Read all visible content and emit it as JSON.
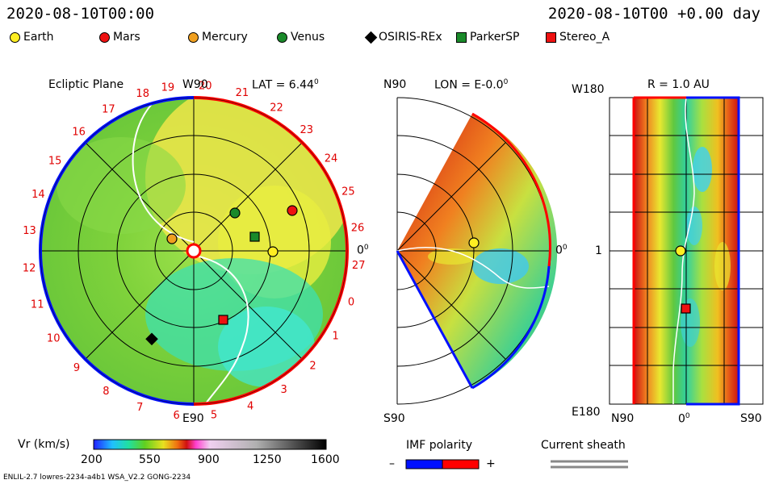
{
  "header": {
    "datetime_left": "2020-08-10T00:00",
    "datetime_right": "2020-08-10T00 +0.00 day"
  },
  "legend": [
    {
      "label": "Earth",
      "color": "#ffee22",
      "shape": "circle"
    },
    {
      "label": "Mars",
      "color": "#ee1111",
      "shape": "circle"
    },
    {
      "label": "Mercury",
      "color": "#f0a020",
      "shape": "circle"
    },
    {
      "label": "Venus",
      "color": "#1a8a2a",
      "shape": "circle"
    },
    {
      "label": "OSIRIS-REx",
      "color": "#000000",
      "shape": "diamond"
    },
    {
      "label": "ParkerSP",
      "color": "#1a8a2a",
      "shape": "square"
    },
    {
      "label": "Stereo_A",
      "color": "#ee1111",
      "shape": "square"
    }
  ],
  "ecliptic": {
    "title": "Ecliptic Plane",
    "top_label": "W90",
    "bottom_label": "E90",
    "right_label": "0",
    "lat_text": "LAT = 6.44",
    "carrington": [
      "19",
      "20",
      "21",
      "22",
      "23",
      "24",
      "25",
      "26",
      "27",
      "0",
      "1",
      "2",
      "3",
      "4",
      "5",
      "6",
      "7",
      "8",
      "9",
      "10",
      "11",
      "12",
      "13",
      "14",
      "15",
      "16",
      "17",
      "18"
    ]
  },
  "meridional": {
    "top_label": "N90",
    "bottom_label": "S90",
    "right_label": "0",
    "lon_text": "LON = E-0.0"
  },
  "radial": {
    "title": "R = 1.0 AU",
    "left_top": "W180",
    "left_mid": "1",
    "left_bottom": "E180",
    "bottom_left": "N90",
    "bottom_mid": "0",
    "bottom_right": "S90"
  },
  "colorbar": {
    "label": "Vr (km/s)",
    "ticks": [
      "200",
      "550",
      "900",
      "1250",
      "1600"
    ]
  },
  "imf": {
    "label": "IMF polarity",
    "minus": "–",
    "plus": "+",
    "colors": [
      "#0010ff",
      "#ff0000"
    ]
  },
  "sheath": {
    "label": "Current sheath"
  },
  "footer": {
    "left": "ENLIL-2.7 lowres-2234-a4b1 WSA_V2.2 GONG-2234"
  }
}
